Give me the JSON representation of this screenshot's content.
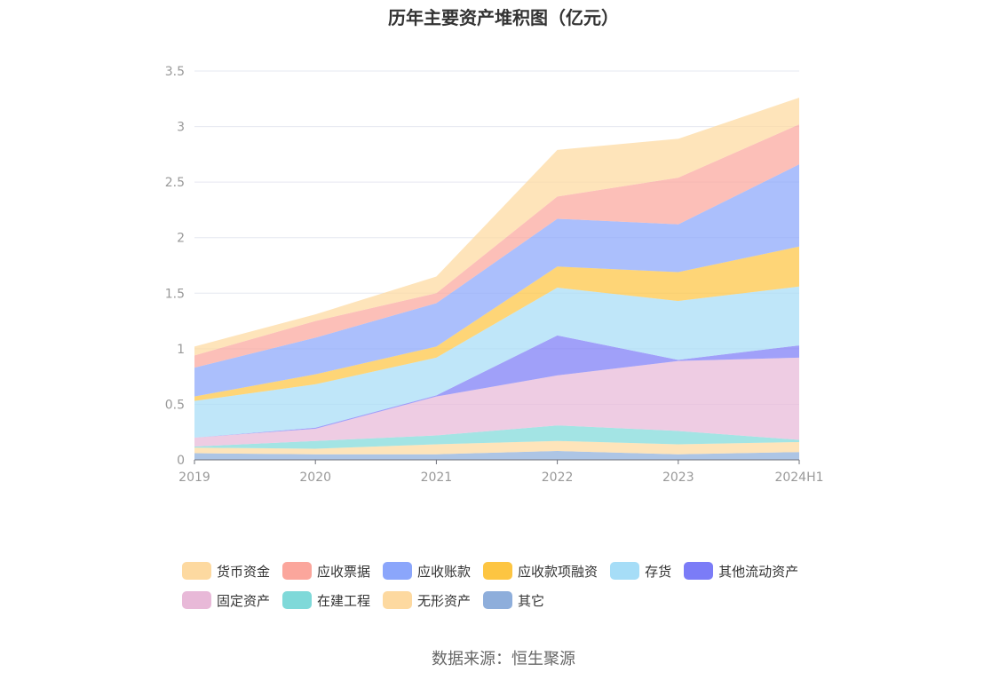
{
  "chart_data": {
    "type": "area",
    "stacked": true,
    "title": "历年主要资产堆积图（亿元）",
    "categories": [
      "2019",
      "2020",
      "2021",
      "2022",
      "2023",
      "2024H1"
    ],
    "ylim": [
      0,
      3.5
    ],
    "yticks": [
      "0",
      "0.5",
      "1",
      "1.5",
      "2",
      "2.5",
      "3",
      "3.5"
    ],
    "grid": true,
    "legend_position": "bottom",
    "series": [
      {
        "name": "其它",
        "color": "#8eaedb",
        "values": [
          0.06,
          0.05,
          0.05,
          0.08,
          0.05,
          0.07
        ]
      },
      {
        "name": "无形资产",
        "color": "#fdd9a0",
        "values": [
          0.05,
          0.05,
          0.09,
          0.09,
          0.09,
          0.09
        ]
      },
      {
        "name": "在建工程",
        "color": "#7fd9d9",
        "values": [
          0.01,
          0.07,
          0.08,
          0.14,
          0.12,
          0.02
        ]
      },
      {
        "name": "固定资产",
        "color": "#e8b9d8",
        "values": [
          0.08,
          0.11,
          0.35,
          0.45,
          0.63,
          0.74
        ]
      },
      {
        "name": "其他流动资产",
        "color": "#7b7cf7",
        "values": [
          0.0,
          0.01,
          0.01,
          0.36,
          0.01,
          0.11
        ]
      },
      {
        "name": "存货",
        "color": "#a6ddf7",
        "values": [
          0.33,
          0.39,
          0.34,
          0.43,
          0.53,
          0.53
        ]
      },
      {
        "name": "应收款项融资",
        "color": "#fdc542",
        "values": [
          0.04,
          0.09,
          0.1,
          0.19,
          0.26,
          0.36
        ]
      },
      {
        "name": "应收账款",
        "color": "#8ba6fb",
        "values": [
          0.26,
          0.33,
          0.39,
          0.43,
          0.43,
          0.74
        ]
      },
      {
        "name": "应收票据",
        "color": "#fba69c",
        "values": [
          0.11,
          0.15,
          0.09,
          0.2,
          0.42,
          0.36
        ]
      },
      {
        "name": "货币资金",
        "color": "#fdd9a0",
        "values": [
          0.08,
          0.06,
          0.15,
          0.42,
          0.35,
          0.24
        ]
      }
    ]
  },
  "legend": {
    "rows": [
      [
        {
          "label": "货币资金",
          "color": "#fdd9a0"
        },
        {
          "label": "应收票据",
          "color": "#fba69c"
        },
        {
          "label": "应收账款",
          "color": "#8ba6fb"
        },
        {
          "label": "应收款项融资",
          "color": "#fdc542"
        },
        {
          "label": "存货",
          "color": "#a6ddf7"
        },
        {
          "label": "其他流动资产",
          "color": "#7b7cf7"
        }
      ],
      [
        {
          "label": "固定资产",
          "color": "#e8b9d8"
        },
        {
          "label": "在建工程",
          "color": "#7fd9d9"
        },
        {
          "label": "无形资产",
          "color": "#fdd9a0"
        },
        {
          "label": "其它",
          "color": "#8eaedb"
        }
      ]
    ]
  },
  "source": "数据来源：恒生聚源"
}
